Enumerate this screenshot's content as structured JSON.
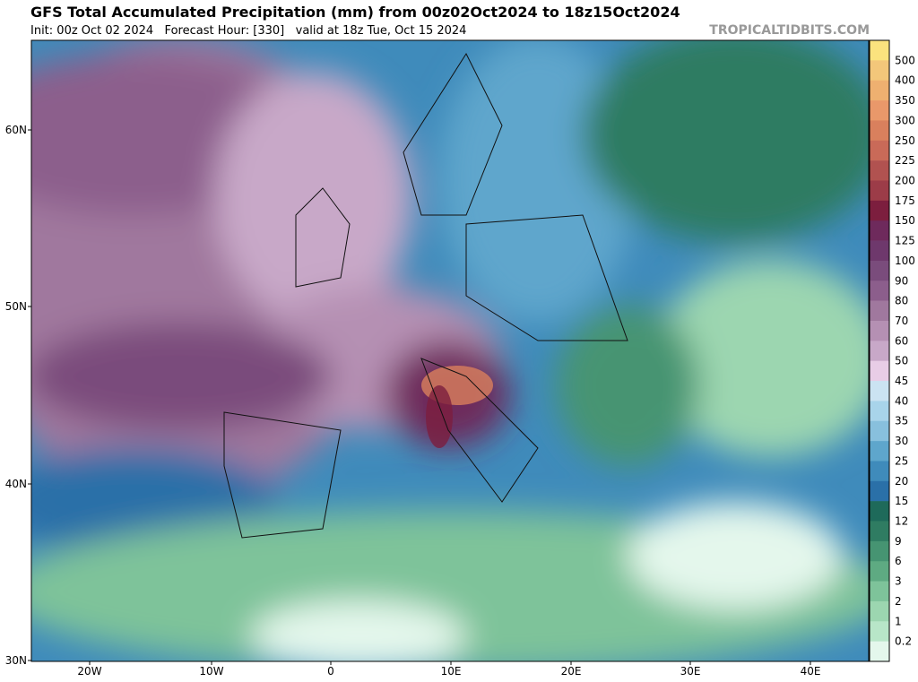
{
  "header": {
    "title": "GFS Total Accumulated Precipitation (mm) from 00z02Oct2024 to 18z15Oct2024",
    "subtitle": "Init: 00z Oct 02 2024   Forecast Hour: [330]   valid at 18z Tue, Oct 15 2024",
    "site": "TROPICALTIDBITS.COM"
  },
  "map": {
    "lat_labels": [
      "60N",
      "50N",
      "40N",
      "30N"
    ],
    "lon_labels": [
      "20W",
      "10W",
      "0",
      "10E",
      "20E",
      "30E",
      "40E"
    ]
  },
  "colorbar": {
    "levels": [
      500,
      400,
      350,
      300,
      250,
      225,
      200,
      175,
      150,
      125,
      100,
      90,
      80,
      70,
      60,
      50,
      45,
      40,
      35,
      30,
      25,
      20,
      15,
      12,
      9,
      6,
      3,
      2,
      1,
      0.2
    ],
    "colors": [
      "#fbe37e",
      "#f3c77a",
      "#eeb070",
      "#e9986a",
      "#d9805d",
      "#c96a58",
      "#b15250",
      "#9c3c48",
      "#7c1e3e",
      "#6e2a5c",
      "#6e386c",
      "#7a4c7c",
      "#8c5e8c",
      "#a0789e",
      "#b590b3",
      "#c8a8c8",
      "#e8cde6",
      "#cbe3f2",
      "#a8d4ea",
      "#88c0dd",
      "#5ea6cc",
      "#3f8bbb",
      "#2a70a8",
      "#1e6a5a",
      "#2f7c62",
      "#469472",
      "#5eaa82",
      "#7ec39a",
      "#9cd6b0",
      "#b8e6c8",
      "#e4f7ec"
    ]
  }
}
